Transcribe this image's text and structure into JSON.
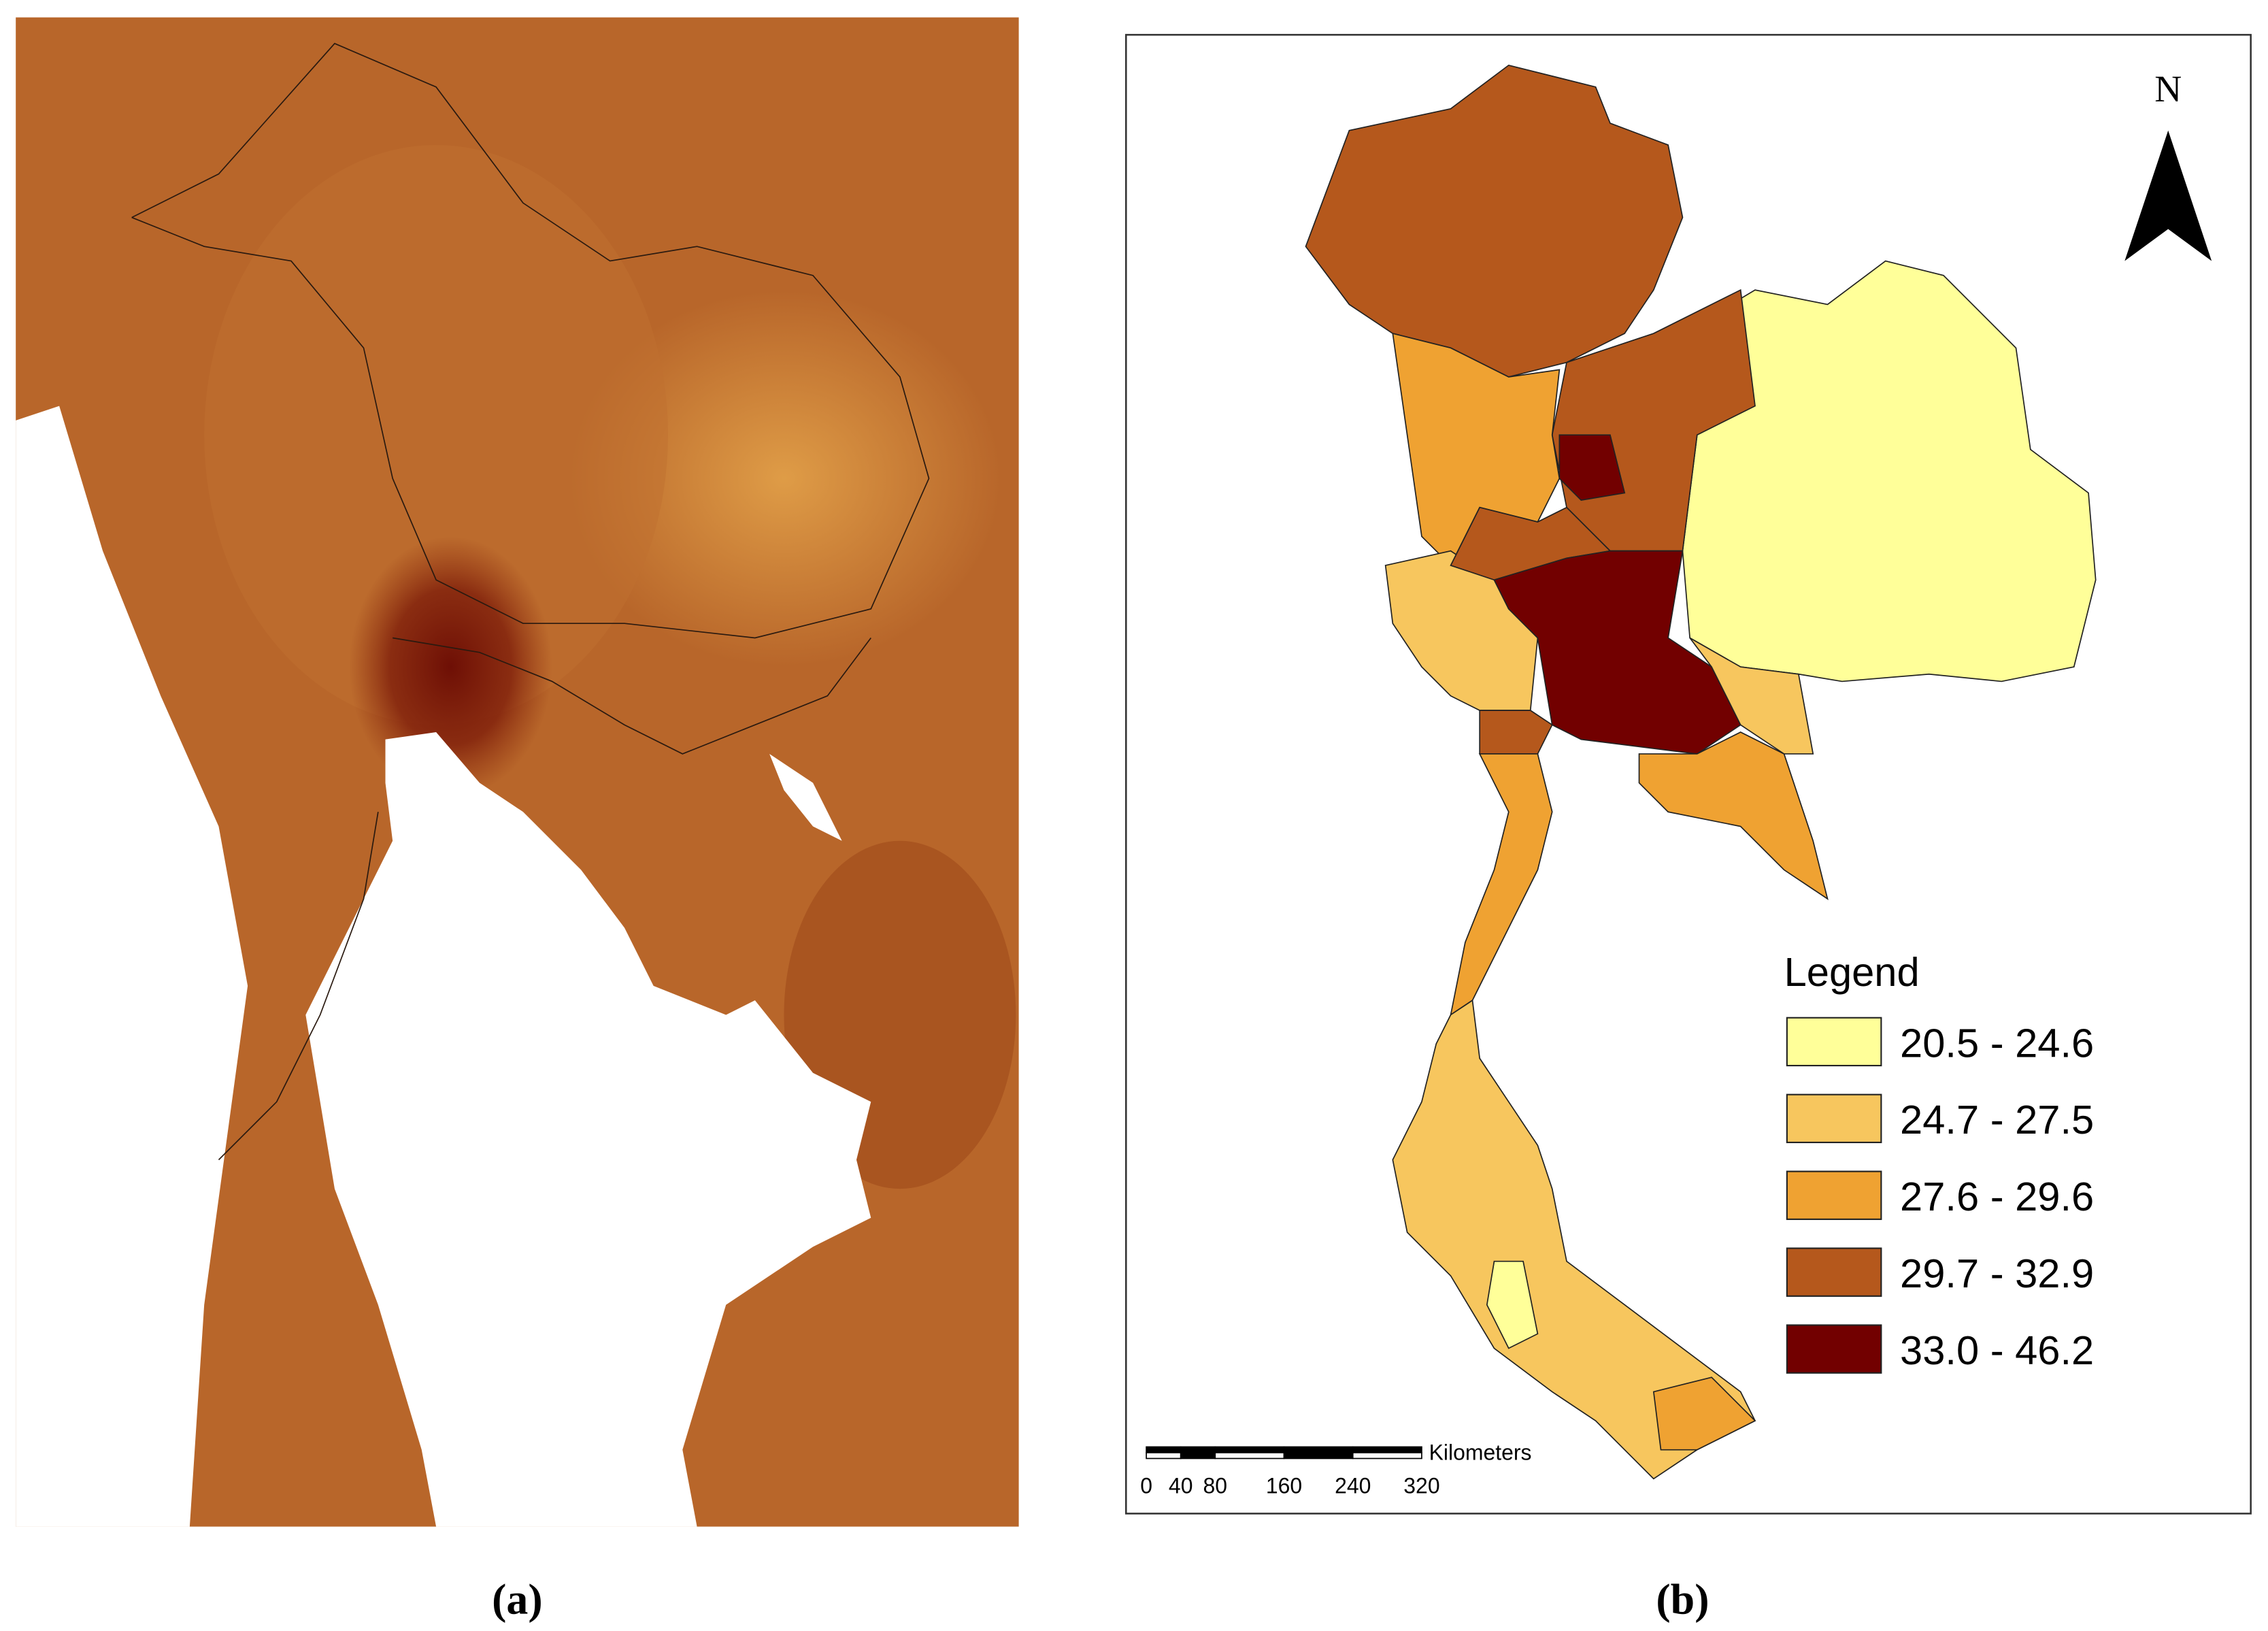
{
  "panels": [
    {
      "caption": "(a)"
    },
    {
      "caption": "(b)",
      "north_label": "N",
      "legend": {
        "title": "Legend",
        "items": [
          {
            "label": "20.5 - 24.6",
            "color": "#ffff99"
          },
          {
            "label": "24.7 - 27.5",
            "color": "#f7c65e"
          },
          {
            "label": "27.6 - 29.6",
            "color": "#efa232"
          },
          {
            "label": "29.7 - 32.9",
            "color": "#b5581c"
          },
          {
            "label": "33.0 - 46.2",
            "color": "#720000"
          }
        ]
      },
      "scale_bar": {
        "unit": "Kilometers",
        "ticks": [
          0,
          40,
          80,
          160,
          240,
          320
        ]
      }
    }
  ]
}
